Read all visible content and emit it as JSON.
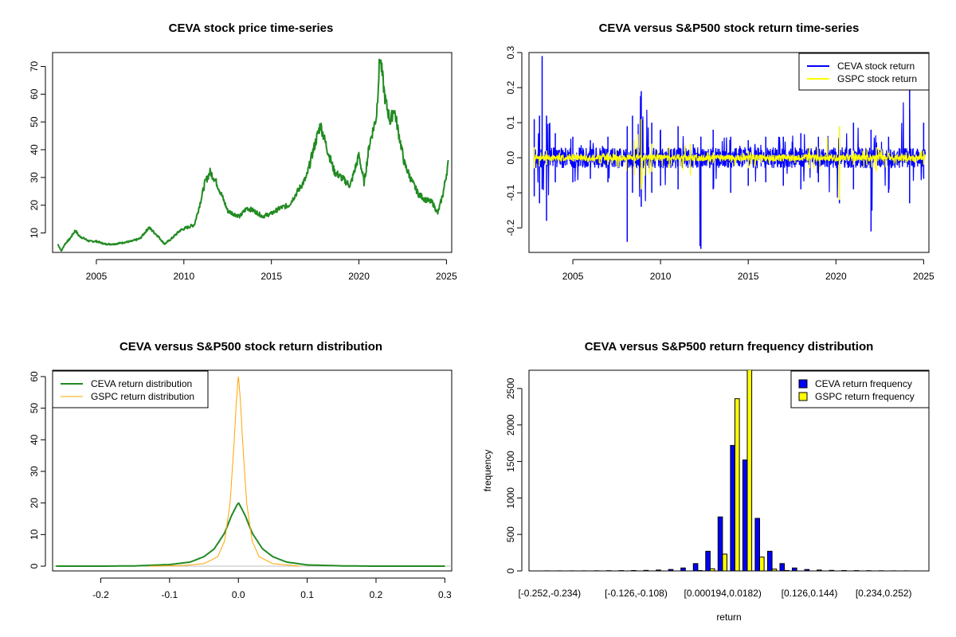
{
  "chart_data": [
    {
      "id": "price",
      "type": "line",
      "title": "CEVA stock price time-series",
      "xlabel": "",
      "ylabel": "",
      "xlim": [
        2002.5,
        2025.3
      ],
      "ylim": [
        3,
        75
      ],
      "x_ticks": [
        2005,
        2010,
        2015,
        2020,
        2025
      ],
      "x_tick_labels": [
        "2005",
        "2010",
        "2015",
        "2020",
        "2025"
      ],
      "y_ticks": [
        10,
        20,
        30,
        40,
        50,
        60,
        70
      ],
      "y_tick_labels": [
        "10",
        "20",
        "30",
        "40",
        "50",
        "60",
        "70"
      ],
      "series": [
        {
          "name": "CEVA stock price",
          "color": "#228B22",
          "x": [
            2002.8,
            2003.0,
            2003.2,
            2003.5,
            2003.8,
            2004.0,
            2004.3,
            2004.6,
            2005.0,
            2005.5,
            2006.0,
            2006.5,
            2007.0,
            2007.5,
            2008.0,
            2008.5,
            2008.9,
            2009.3,
            2009.8,
            2010.2,
            2010.6,
            2010.9,
            2011.2,
            2011.5,
            2011.8,
            2012.2,
            2012.5,
            2012.8,
            2013.2,
            2013.6,
            2014.0,
            2014.5,
            2015.0,
            2015.5,
            2016.0,
            2016.5,
            2017.0,
            2017.4,
            2017.8,
            2018.2,
            2018.6,
            2019.0,
            2019.5,
            2020.0,
            2020.3,
            2020.6,
            2021.0,
            2021.2,
            2021.5,
            2021.8,
            2022.0,
            2022.3,
            2022.6,
            2023.0,
            2023.4,
            2023.8,
            2024.2,
            2024.5,
            2024.8,
            2025.1
          ],
          "values": [
            6,
            3.5,
            6,
            8,
            11,
            9,
            8,
            7,
            7,
            6,
            6,
            6.5,
            7,
            8,
            12,
            9,
            6,
            8,
            11,
            12,
            13,
            20,
            28,
            32,
            29,
            23,
            18,
            17,
            16,
            19,
            18,
            16,
            17,
            19,
            20,
            25,
            30,
            40,
            49,
            40,
            32,
            30,
            27,
            38,
            28,
            42,
            52,
            74,
            58,
            50,
            55,
            45,
            35,
            29,
            24,
            22,
            21,
            17,
            24,
            35
          ]
        }
      ]
    },
    {
      "id": "returns-ts",
      "type": "line",
      "title": "CEVA versus S&P500 stock return time-series",
      "xlabel": "",
      "ylabel": "",
      "xlim": [
        2002.5,
        2025.3
      ],
      "ylim": [
        -0.27,
        0.3
      ],
      "x_ticks": [
        2005,
        2010,
        2015,
        2020,
        2025
      ],
      "x_tick_labels": [
        "2005",
        "2010",
        "2015",
        "2020",
        "2025"
      ],
      "y_ticks": [
        -0.2,
        -0.1,
        0.0,
        0.1,
        0.2,
        0.3
      ],
      "y_tick_labels": [
        "-0.2",
        "-0.1",
        "0.0",
        "0.1",
        "0.2",
        "0.3"
      ],
      "legend": "top-right",
      "series": [
        {
          "name": "CEVA stock return",
          "color": "#0000FF",
          "x": [
            2002.8,
            2003.1,
            2003.25,
            2003.5,
            2004.0,
            2005.0,
            2006.0,
            2007.0,
            2008.1,
            2008.4,
            2008.9,
            2009.5,
            2010.0,
            2011.0,
            2012.3,
            2013.0,
            2014.0,
            2015.0,
            2016.0,
            2017.0,
            2018.0,
            2019.0,
            2020.2,
            2021.0,
            2022.0,
            2023.0,
            2024.2,
            2025.0
          ],
          "high": [
            0.11,
            0.12,
            0.29,
            0.12,
            0.07,
            0.06,
            0.05,
            0.06,
            0.09,
            0.12,
            0.19,
            0.1,
            0.08,
            0.09,
            0.06,
            0.08,
            0.06,
            0.05,
            0.06,
            0.06,
            0.07,
            0.06,
            0.09,
            0.1,
            0.08,
            0.06,
            0.2,
            0.1
          ],
          "low": [
            -0.11,
            -0.13,
            -0.09,
            -0.18,
            -0.07,
            -0.07,
            -0.06,
            -0.07,
            -0.24,
            -0.1,
            -0.14,
            -0.1,
            -0.08,
            -0.09,
            -0.26,
            -0.09,
            -0.1,
            -0.08,
            -0.07,
            -0.08,
            -0.09,
            -0.07,
            -0.13,
            -0.09,
            -0.21,
            -0.1,
            -0.13,
            -0.06
          ]
        },
        {
          "name": "GSPC stock return",
          "color": "#FFFF00",
          "x": [
            2002.8,
            2003.5,
            2005.0,
            2007.0,
            2008.5,
            2008.9,
            2009.5,
            2010.5,
            2011.7,
            2013.0,
            2015.0,
            2017.0,
            2018.5,
            2020.2,
            2021.0,
            2022.3,
            2024.0,
            2025.0
          ],
          "high": [
            0.03,
            0.02,
            0.01,
            0.015,
            0.05,
            0.11,
            0.04,
            0.03,
            0.04,
            0.015,
            0.02,
            0.01,
            0.03,
            0.09,
            0.02,
            0.03,
            0.015,
            0.02
          ],
          "low": [
            -0.03,
            -0.02,
            -0.01,
            -0.02,
            -0.05,
            -0.09,
            -0.04,
            -0.03,
            -0.05,
            -0.015,
            -0.03,
            -0.01,
            -0.03,
            -0.12,
            -0.02,
            -0.04,
            -0.015,
            -0.02
          ]
        }
      ]
    },
    {
      "id": "density",
      "type": "line",
      "title": "CEVA versus S&P500 stock return distribution",
      "xlabel": "",
      "ylabel": "",
      "xlim": [
        -0.27,
        0.31
      ],
      "ylim": [
        -1.5,
        62
      ],
      "x_ticks": [
        -0.2,
        -0.1,
        0.0,
        0.1,
        0.2,
        0.3
      ],
      "x_tick_labels": [
        "-0.2",
        "-0.1",
        "0.0",
        "0.1",
        "0.2",
        "0.3"
      ],
      "y_ticks": [
        0,
        10,
        20,
        30,
        40,
        50,
        60
      ],
      "y_tick_labels": [
        "0",
        "10",
        "20",
        "30",
        "40",
        "50",
        "60"
      ],
      "legend": "top-left",
      "series": [
        {
          "name": "CEVA return distribution",
          "color": "#228B22",
          "width": 2,
          "x": [
            -0.265,
            -0.2,
            -0.15,
            -0.1,
            -0.07,
            -0.05,
            -0.035,
            -0.02,
            -0.01,
            0.0,
            0.01,
            0.02,
            0.035,
            0.05,
            0.07,
            0.1,
            0.15,
            0.2,
            0.3
          ],
          "values": [
            0,
            0,
            0.1,
            0.5,
            1.3,
            3,
            5.5,
            10.5,
            16,
            20.2,
            16,
            10.5,
            5.5,
            3,
            1.3,
            0.4,
            0.1,
            0,
            0
          ]
        },
        {
          "name": "GSPC return distribution",
          "color": "#FFA500",
          "width": 1,
          "x": [
            -0.13,
            -0.08,
            -0.05,
            -0.03,
            -0.02,
            -0.012,
            -0.006,
            -0.003,
            0.0,
            0.003,
            0.006,
            0.012,
            0.02,
            0.03,
            0.05,
            0.09
          ],
          "values": [
            0,
            0.2,
            0.8,
            3,
            8,
            20,
            40,
            52,
            60.5,
            52,
            40,
            20,
            8,
            3,
            0.8,
            0
          ]
        }
      ]
    },
    {
      "id": "histogram",
      "type": "bar",
      "title": "CEVA versus S&P500 return frequency distribution",
      "xlabel": "return",
      "ylabel": "frequency",
      "ylim": [
        0,
        2750
      ],
      "y_ticks": [
        0,
        500,
        1000,
        1500,
        2000,
        2500
      ],
      "y_tick_labels": [
        "0",
        "500",
        "1000",
        "1500",
        "2000",
        "2500"
      ],
      "category_count": 30,
      "x_tick_index": [
        0,
        7,
        14,
        21,
        27
      ],
      "x_tick_labels": [
        "[-0.252,-0.234)",
        "[-0.126,-0.108)",
        "[0.000194,0.0182)",
        "[0.126,0.144)",
        "[0.234,0.252)"
      ],
      "legend": "top-right",
      "series": [
        {
          "name": "CEVA return frequency",
          "color": "#0000FF",
          "values": [
            1,
            1,
            1,
            1,
            2,
            3,
            4,
            6,
            8,
            12,
            20,
            40,
            100,
            270,
            740,
            1720,
            1520,
            720,
            270,
            100,
            40,
            20,
            12,
            8,
            6,
            4,
            3,
            2,
            1,
            1
          ]
        },
        {
          "name": "GSPC return frequency",
          "color": "#FFFF00",
          "values": [
            0,
            0,
            0,
            0,
            0,
            0,
            0,
            0,
            0,
            0,
            0,
            0,
            5,
            30,
            230,
            2360,
            2800,
            190,
            25,
            5,
            0,
            0,
            0,
            0,
            0,
            0,
            0,
            0,
            0,
            0
          ]
        }
      ]
    }
  ]
}
